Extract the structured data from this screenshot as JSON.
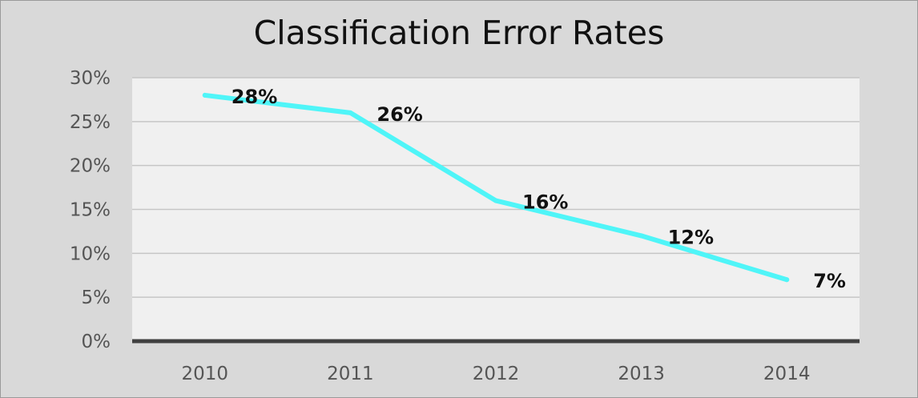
{
  "chart_data": {
    "type": "line",
    "title": "Classification Error Rates",
    "xlabel": "",
    "ylabel": "",
    "categories": [
      "2010",
      "2011",
      "2012",
      "2013",
      "2014"
    ],
    "series": [
      {
        "values": [
          28,
          26,
          16,
          12,
          7
        ]
      }
    ],
    "data_labels": [
      "28%",
      "26%",
      "16%",
      "12%",
      "7%"
    ],
    "y_ticks": [
      "0%",
      "5%",
      "10%",
      "15%",
      "20%",
      "25%",
      "30%"
    ],
    "ylim": [
      0,
      30
    ],
    "grid": true,
    "legend": "none",
    "colors": {
      "background": "#d9d9d9",
      "plot_area": "#f0f0f0",
      "line": "#4ff5f8",
      "gridline": "#c6c6c6",
      "axis": "#404040"
    }
  }
}
